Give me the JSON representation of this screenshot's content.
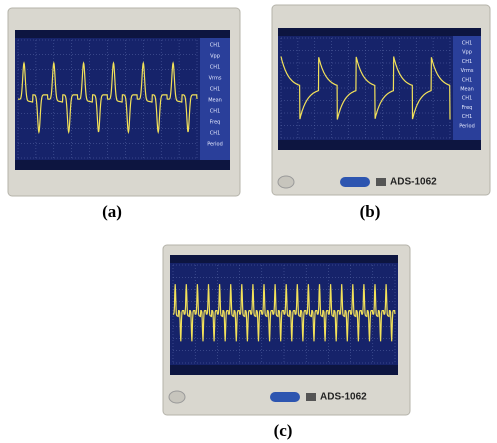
{
  "panels": [
    {
      "label": "(a)",
      "readouts": [
        "CH1",
        "Vpp",
        "CH1",
        "Vrms",
        "CH1",
        "Mean",
        "CH1",
        "Freq",
        "CH1",
        "Period"
      ]
    },
    {
      "label": "(b)",
      "readouts": [
        "CH1",
        "Vpp",
        "CH1",
        "Vrms",
        "CH1",
        "Mean",
        "CH1",
        "Freq",
        "CH1",
        "Period"
      ],
      "model": "ADS-1062"
    },
    {
      "label": "(c)",
      "model": "ADS-1062"
    }
  ]
}
